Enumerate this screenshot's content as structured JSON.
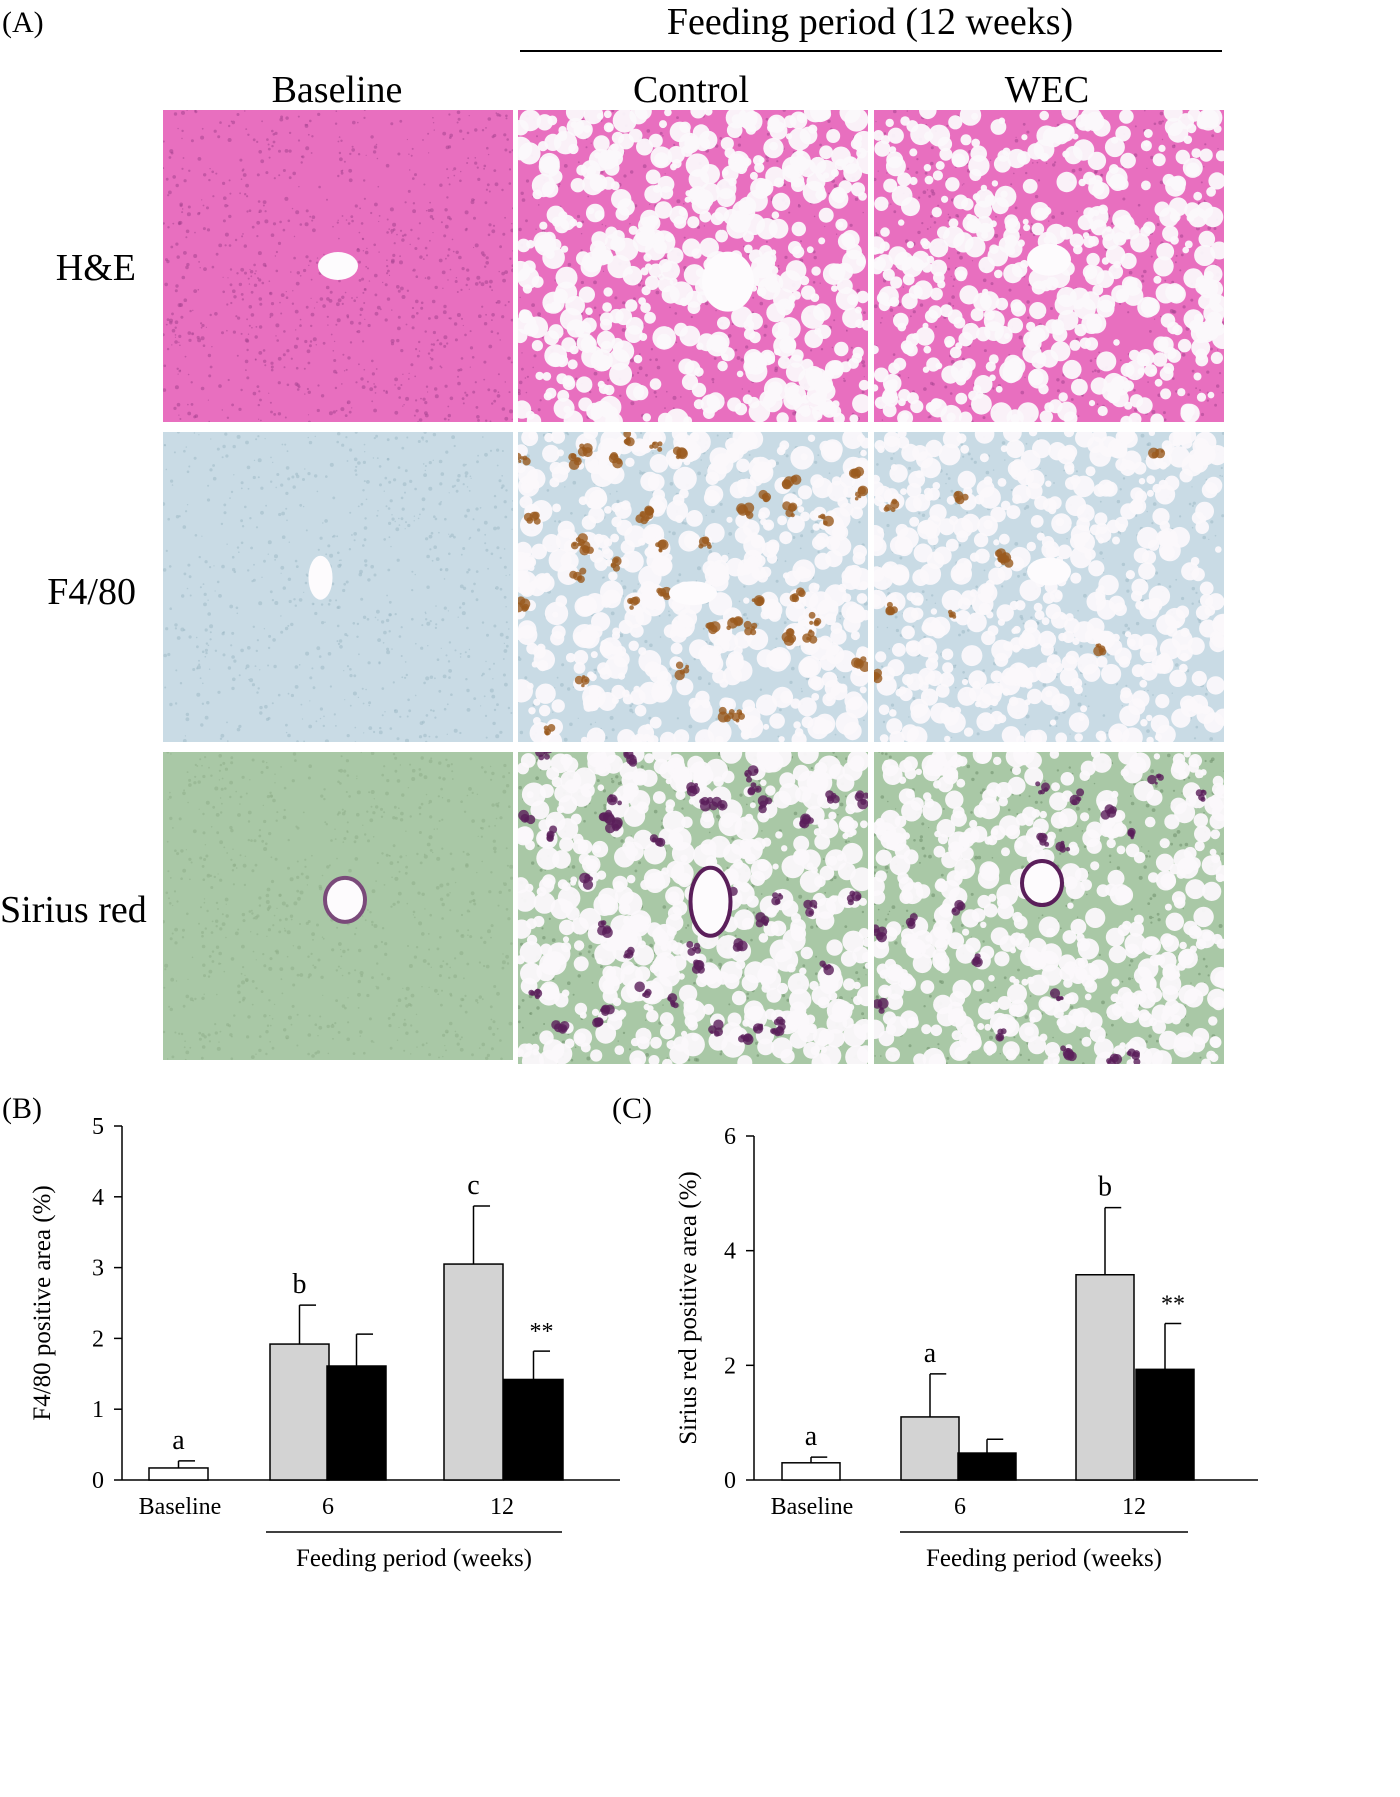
{
  "panel_a": {
    "letter": "(A)",
    "group_header": "Feeding period (12 weeks)",
    "columns": [
      "Baseline",
      "Control",
      "WEC"
    ],
    "rows": [
      "H&E",
      "F4/80",
      "Sirius red"
    ]
  },
  "colors": {
    "he_stain": "#e86fbf",
    "f480_stain": "#c9dbe5",
    "f480_positive": "#9a5a1e",
    "sirius_stain": "#a9c8a6",
    "sirius_positive": "#5a1e5a",
    "control_bar": "#d3d3d3",
    "wec_bar": "#000000",
    "baseline_bar": "#ffffff"
  },
  "chart_data": [
    {
      "type": "bar",
      "panel_letter": "(B)",
      "title": "",
      "ylabel": "F4/80 positive area (%)",
      "xlabel": "Feeding period (weeks)",
      "ylim": [
        0,
        5
      ],
      "yticks": [
        "0",
        "1",
        "2",
        "3",
        "4",
        "5"
      ],
      "groups": [
        "Baseline",
        "6",
        "12"
      ],
      "bars": [
        {
          "group": "Baseline",
          "value": 0.17,
          "error": 0.1,
          "color": "#ffffff",
          "annotation": "a"
        },
        {
          "group": "6",
          "value": 1.92,
          "error": 0.55,
          "color": "#d3d3d3",
          "annotation": "b"
        },
        {
          "group": "6",
          "value": 1.61,
          "error": 0.45,
          "color": "#000000",
          "annotation": ""
        },
        {
          "group": "12",
          "value": 3.05,
          "error": 0.82,
          "color": "#d3d3d3",
          "annotation": "c"
        },
        {
          "group": "12",
          "value": 1.42,
          "error": 0.4,
          "color": "#000000",
          "annotation": "**"
        }
      ]
    },
    {
      "type": "bar",
      "panel_letter": "(C)",
      "title": "",
      "ylabel": "Sirius red positive area (%)",
      "xlabel": "Feeding period (weeks)",
      "ylim": [
        0,
        6
      ],
      "yticks": [
        "0",
        "2",
        "4",
        "6"
      ],
      "groups": [
        "Baseline",
        "6",
        "12"
      ],
      "bars": [
        {
          "group": "Baseline",
          "value": 0.3,
          "error": 0.1,
          "color": "#ffffff",
          "annotation": "a"
        },
        {
          "group": "6",
          "value": 1.1,
          "error": 0.75,
          "color": "#d3d3d3",
          "annotation": "a"
        },
        {
          "group": "6",
          "value": 0.47,
          "error": 0.24,
          "color": "#000000",
          "annotation": ""
        },
        {
          "group": "12",
          "value": 3.58,
          "error": 1.17,
          "color": "#d3d3d3",
          "annotation": "b"
        },
        {
          "group": "12",
          "value": 1.93,
          "error": 0.8,
          "color": "#000000",
          "annotation": "**"
        }
      ]
    }
  ]
}
